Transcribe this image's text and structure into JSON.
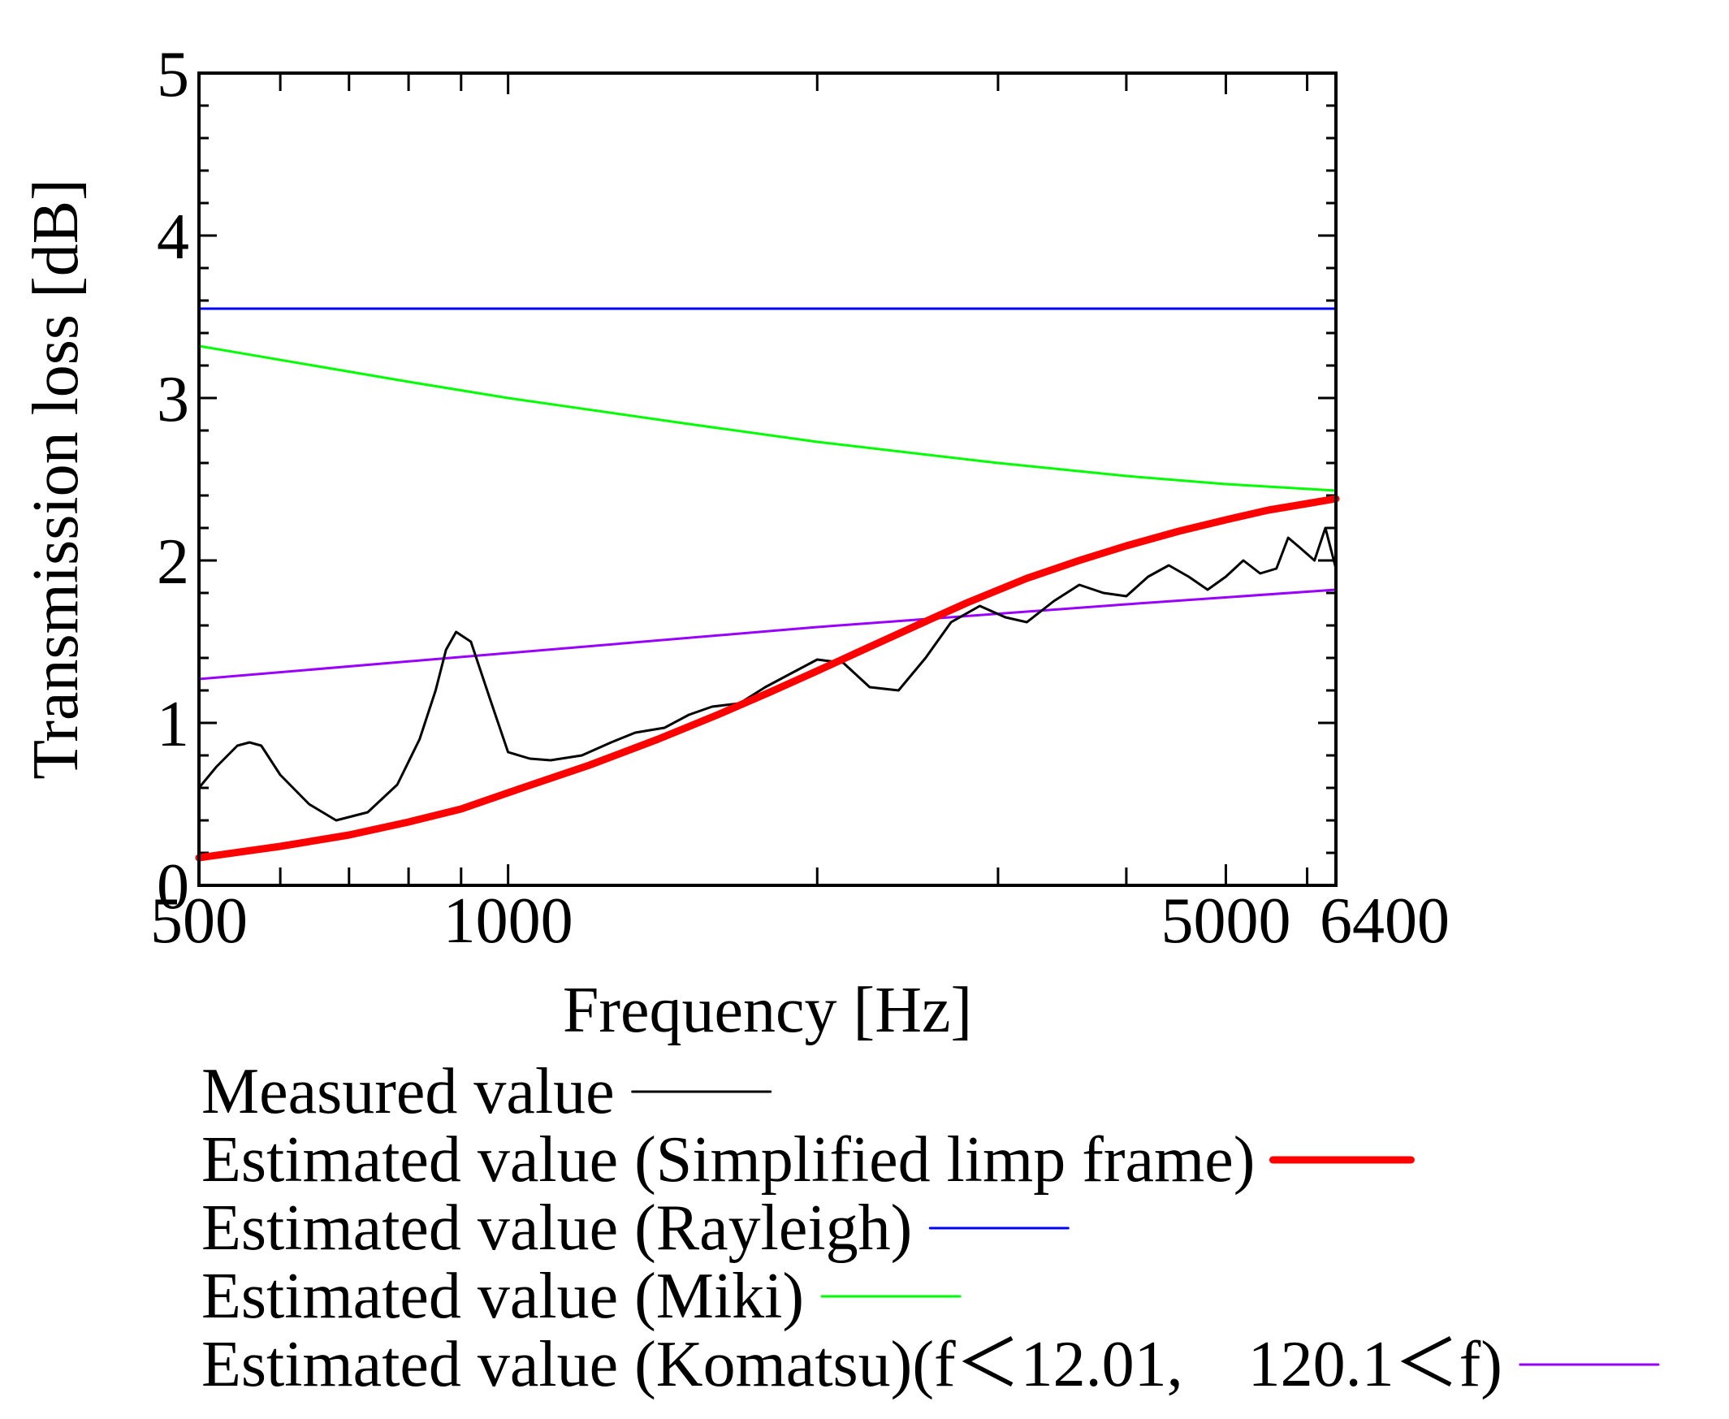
{
  "chart_data": {
    "type": "line",
    "title": "",
    "xlabel": "Frequency [Hz]",
    "ylabel": "Transmission loss [dB]",
    "xscale": "log",
    "xlim": [
      500,
      6400
    ],
    "ylim": [
      0,
      5
    ],
    "x_tick_labels": [
      {
        "value": 500,
        "label": "500"
      },
      {
        "value": 1000,
        "label": "1000"
      },
      {
        "value": 5000,
        "label": "5000"
      },
      {
        "value": 6400,
        "label": "6400"
      }
    ],
    "x_minor_ticks": [
      600,
      700,
      800,
      900,
      2000,
      3000,
      4000,
      6000
    ],
    "y_tick_labels": [
      {
        "value": 0,
        "label": "0"
      },
      {
        "value": 1,
        "label": "1"
      },
      {
        "value": 2,
        "label": "2"
      },
      {
        "value": 3,
        "label": "3"
      },
      {
        "value": 4,
        "label": "4"
      },
      {
        "value": 5,
        "label": "5"
      }
    ],
    "y_minor_step": 0.2,
    "legend_placement": "below",
    "series": [
      {
        "name": "Measured value",
        "color": "#000000",
        "linewidth": 3,
        "x": [
          500,
          520,
          545,
          560,
          575,
          600,
          640,
          680,
          730,
          780,
          820,
          850,
          870,
          890,
          920,
          960,
          1000,
          1050,
          1100,
          1180,
          1260,
          1330,
          1420,
          1500,
          1580,
          1680,
          1780,
          1880,
          2000,
          2120,
          2250,
          2400,
          2550,
          2700,
          2880,
          3050,
          3200,
          3400,
          3600,
          3800,
          4000,
          4200,
          4400,
          4600,
          4800,
          5000,
          5200,
          5400,
          5600,
          5750,
          5900,
          6100,
          6250,
          6400
        ],
        "y": [
          0.6,
          0.73,
          0.86,
          0.88,
          0.86,
          0.68,
          0.5,
          0.4,
          0.45,
          0.62,
          0.9,
          1.2,
          1.45,
          1.56,
          1.5,
          1.15,
          0.82,
          0.78,
          0.77,
          0.8,
          0.88,
          0.94,
          0.97,
          1.05,
          1.1,
          1.12,
          1.22,
          1.3,
          1.39,
          1.37,
          1.22,
          1.2,
          1.4,
          1.62,
          1.72,
          1.65,
          1.62,
          1.75,
          1.85,
          1.8,
          1.78,
          1.9,
          1.97,
          1.9,
          1.82,
          1.9,
          2.0,
          1.92,
          1.95,
          2.14,
          2.08,
          2.0,
          2.2,
          1.95
        ]
      },
      {
        "name": "Estimated value (Simplified limp frame)",
        "color": "#ff0000",
        "linewidth": 9,
        "x": [
          500,
          600,
          700,
          800,
          900,
          1000,
          1200,
          1400,
          1600,
          1800,
          2000,
          2200,
          2500,
          2800,
          3200,
          3600,
          4000,
          4500,
          5000,
          5500,
          6000,
          6400
        ],
        "y": [
          0.17,
          0.24,
          0.31,
          0.39,
          0.47,
          0.57,
          0.74,
          0.9,
          1.05,
          1.19,
          1.32,
          1.44,
          1.6,
          1.74,
          1.89,
          2.0,
          2.09,
          2.18,
          2.25,
          2.31,
          2.35,
          2.38
        ]
      },
      {
        "name": "Estimated value (Rayleigh)",
        "color": "#0000ff",
        "linewidth": 3,
        "x": [
          500,
          6400
        ],
        "y": [
          3.55,
          3.55
        ]
      },
      {
        "name": "Estimated value (Miki)",
        "color": "#00ff00",
        "linewidth": 3,
        "x": [
          500,
          800,
          1000,
          1500,
          2000,
          3000,
          4000,
          5000,
          6400
        ],
        "y": [
          3.32,
          3.1,
          3.0,
          2.84,
          2.73,
          2.6,
          2.52,
          2.47,
          2.43
        ]
      },
      {
        "name": "Estimated value (Komatsu)(f＜12.01,　120.1＜f)",
        "color": "#9900ff",
        "linewidth": 3,
        "x": [
          500,
          1000,
          2000,
          4000,
          6400
        ],
        "y": [
          1.27,
          1.43,
          1.59,
          1.73,
          1.82
        ]
      }
    ]
  }
}
